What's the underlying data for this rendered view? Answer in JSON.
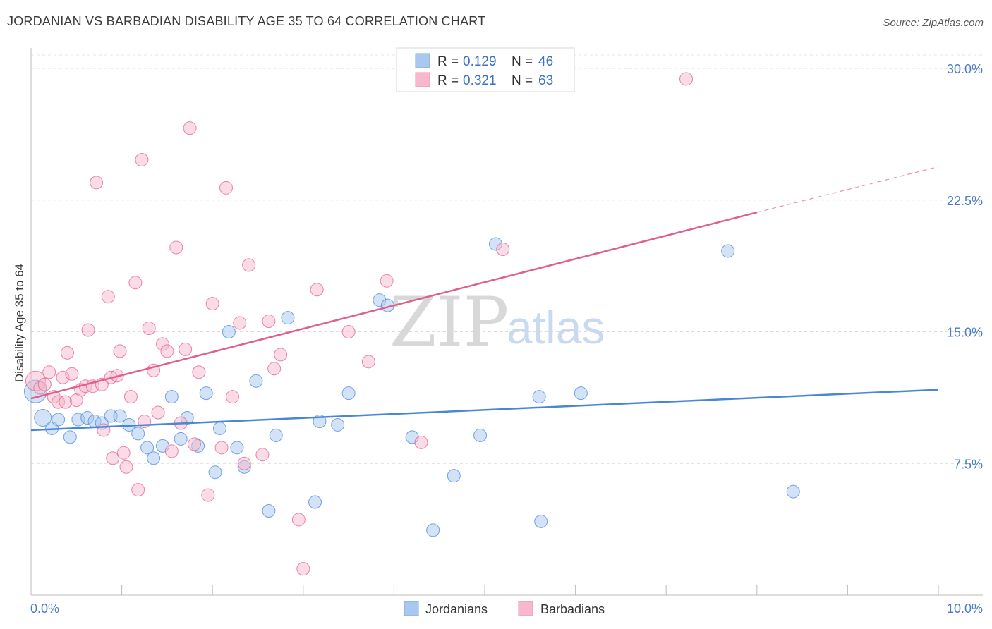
{
  "header": {
    "title": "JORDANIAN VS BARBADIAN DISABILITY AGE 35 TO 64 CORRELATION CHART",
    "source": "Source: ZipAtlas.com"
  },
  "watermark": {
    "zip": "ZIP",
    "atlas": "atlas"
  },
  "legend": {
    "rows": [
      {
        "r_label": "R =",
        "r_value": "0.129",
        "n_label": "N =",
        "n_value": "46",
        "color": "#a8c8f0"
      },
      {
        "r_label": "R =",
        "r_value": "0.321",
        "n_label": "N =",
        "n_value": "63",
        "color": "#f7b8cc"
      }
    ]
  },
  "bottom_legend": [
    {
      "label": "Jordanians",
      "color": "#a8c8f0"
    },
    {
      "label": "Barbadians",
      "color": "#f7b8cc"
    }
  ],
  "chart_data": {
    "type": "scatter",
    "title": "JORDANIAN VS BARBADIAN DISABILITY AGE 35 TO 64 CORRELATION CHART",
    "xlabel": "",
    "ylabel": "Disability Age 35 to 64",
    "xlim": [
      0,
      10
    ],
    "ylim": [
      0,
      31.5
    ],
    "x_tick_labels": [
      "0.0%",
      "10.0%"
    ],
    "y_ticks": [
      7.5,
      15.0,
      22.5,
      30.0
    ],
    "y_tick_labels": [
      "7.5%",
      "15.0%",
      "22.5%",
      "30.0%"
    ],
    "grid": true,
    "series": [
      {
        "name": "Jordanians",
        "color": "#4a86d8",
        "fill": "#a8c8f0",
        "trend": {
          "x": [
            0,
            10
          ],
          "y": [
            9.4,
            11.7
          ]
        },
        "points": [
          [
            0.05,
            11.6,
            16
          ],
          [
            0.13,
            10.1,
            12
          ],
          [
            0.23,
            9.5,
            9
          ],
          [
            0.3,
            10.0,
            9
          ],
          [
            0.43,
            9.0,
            9
          ],
          [
            0.52,
            10.0,
            9
          ],
          [
            0.62,
            10.1,
            9
          ],
          [
            0.7,
            9.9,
            9
          ],
          [
            0.78,
            9.8,
            9
          ],
          [
            0.88,
            10.2,
            9
          ],
          [
            0.98,
            10.2,
            9
          ],
          [
            1.08,
            9.7,
            9
          ],
          [
            1.18,
            9.2,
            9
          ],
          [
            1.28,
            8.4,
            9
          ],
          [
            1.35,
            7.8,
            9
          ],
          [
            1.45,
            8.5,
            9
          ],
          [
            1.55,
            11.3,
            9
          ],
          [
            1.65,
            8.9,
            9
          ],
          [
            1.72,
            10.1,
            9
          ],
          [
            1.84,
            8.5,
            9
          ],
          [
            1.93,
            11.5,
            9
          ],
          [
            2.03,
            7.0,
            9
          ],
          [
            2.08,
            9.5,
            9
          ],
          [
            2.18,
            15.0,
            9
          ],
          [
            2.27,
            8.4,
            9
          ],
          [
            2.35,
            7.3,
            9
          ],
          [
            2.48,
            12.2,
            9
          ],
          [
            2.62,
            4.8,
            9
          ],
          [
            2.7,
            9.1,
            9
          ],
          [
            2.83,
            15.8,
            9
          ],
          [
            3.13,
            5.3,
            9
          ],
          [
            3.18,
            9.9,
            9
          ],
          [
            3.38,
            9.7,
            9
          ],
          [
            3.5,
            11.5,
            9
          ],
          [
            3.84,
            16.8,
            9
          ],
          [
            3.93,
            16.5,
            9
          ],
          [
            4.2,
            9.0,
            9
          ],
          [
            4.43,
            3.7,
            9
          ],
          [
            4.66,
            6.8,
            9
          ],
          [
            4.95,
            9.1,
            9
          ],
          [
            5.12,
            20.0,
            9
          ],
          [
            5.6,
            11.3,
            9
          ],
          [
            5.62,
            4.2,
            9
          ],
          [
            6.06,
            11.5,
            9
          ],
          [
            7.68,
            19.6,
            9
          ],
          [
            8.4,
            5.9,
            9
          ]
        ]
      },
      {
        "name": "Barbadians",
        "color": "#e0608a",
        "fill": "#f7b8cc",
        "trend": {
          "x": [
            0,
            8.0
          ],
          "y": [
            11.2,
            21.8
          ]
        },
        "trend_dashed": {
          "x": [
            8.0,
            10.0
          ],
          "y": [
            21.8,
            24.4
          ]
        },
        "points": [
          [
            0.05,
            12.2,
            14
          ],
          [
            0.1,
            11.8,
            9
          ],
          [
            0.15,
            12.0,
            9
          ],
          [
            0.2,
            12.7,
            9
          ],
          [
            0.25,
            11.3,
            9
          ],
          [
            0.3,
            11.0,
            9
          ],
          [
            0.35,
            12.4,
            9
          ],
          [
            0.38,
            11.0,
            9
          ],
          [
            0.4,
            13.8,
            9
          ],
          [
            0.45,
            12.6,
            9
          ],
          [
            0.5,
            11.1,
            9
          ],
          [
            0.55,
            11.7,
            9
          ],
          [
            0.6,
            11.9,
            9
          ],
          [
            0.63,
            15.1,
            9
          ],
          [
            0.68,
            11.9,
            9
          ],
          [
            0.72,
            23.5,
            9
          ],
          [
            0.78,
            12.0,
            9
          ],
          [
            0.8,
            9.4,
            9
          ],
          [
            0.85,
            17.0,
            9
          ],
          [
            0.88,
            12.4,
            9
          ],
          [
            0.9,
            7.8,
            9
          ],
          [
            0.95,
            12.5,
            9
          ],
          [
            0.98,
            13.9,
            9
          ],
          [
            1.02,
            8.1,
            9
          ],
          [
            1.05,
            7.3,
            9
          ],
          [
            1.1,
            11.3,
            9
          ],
          [
            1.15,
            17.8,
            9
          ],
          [
            1.18,
            6.0,
            9
          ],
          [
            1.22,
            24.8,
            9
          ],
          [
            1.25,
            9.9,
            9
          ],
          [
            1.3,
            15.2,
            9
          ],
          [
            1.35,
            12.8,
            9
          ],
          [
            1.4,
            10.4,
            9
          ],
          [
            1.45,
            14.3,
            9
          ],
          [
            1.5,
            13.9,
            9
          ],
          [
            1.55,
            8.2,
            9
          ],
          [
            1.6,
            19.8,
            9
          ],
          [
            1.65,
            9.8,
            9
          ],
          [
            1.7,
            14.0,
            9
          ],
          [
            1.75,
            26.6,
            9
          ],
          [
            1.8,
            8.6,
            9
          ],
          [
            1.85,
            12.7,
            9
          ],
          [
            1.95,
            5.7,
            9
          ],
          [
            2.0,
            16.6,
            9
          ],
          [
            2.1,
            8.4,
            9
          ],
          [
            2.15,
            23.2,
            9
          ],
          [
            2.22,
            11.3,
            9
          ],
          [
            2.3,
            15.5,
            9
          ],
          [
            2.35,
            7.5,
            9
          ],
          [
            2.4,
            18.8,
            9
          ],
          [
            2.55,
            8.0,
            9
          ],
          [
            2.62,
            15.6,
            9
          ],
          [
            2.68,
            12.9,
            9
          ],
          [
            2.75,
            13.7,
            9
          ],
          [
            2.95,
            4.3,
            9
          ],
          [
            3.0,
            1.5,
            9
          ],
          [
            3.15,
            17.4,
            9
          ],
          [
            3.5,
            15.0,
            9
          ],
          [
            3.72,
            13.3,
            9
          ],
          [
            3.92,
            17.9,
            9
          ],
          [
            4.3,
            8.7,
            9
          ],
          [
            5.2,
            19.7,
            9
          ],
          [
            7.22,
            29.4,
            9
          ]
        ]
      }
    ]
  }
}
